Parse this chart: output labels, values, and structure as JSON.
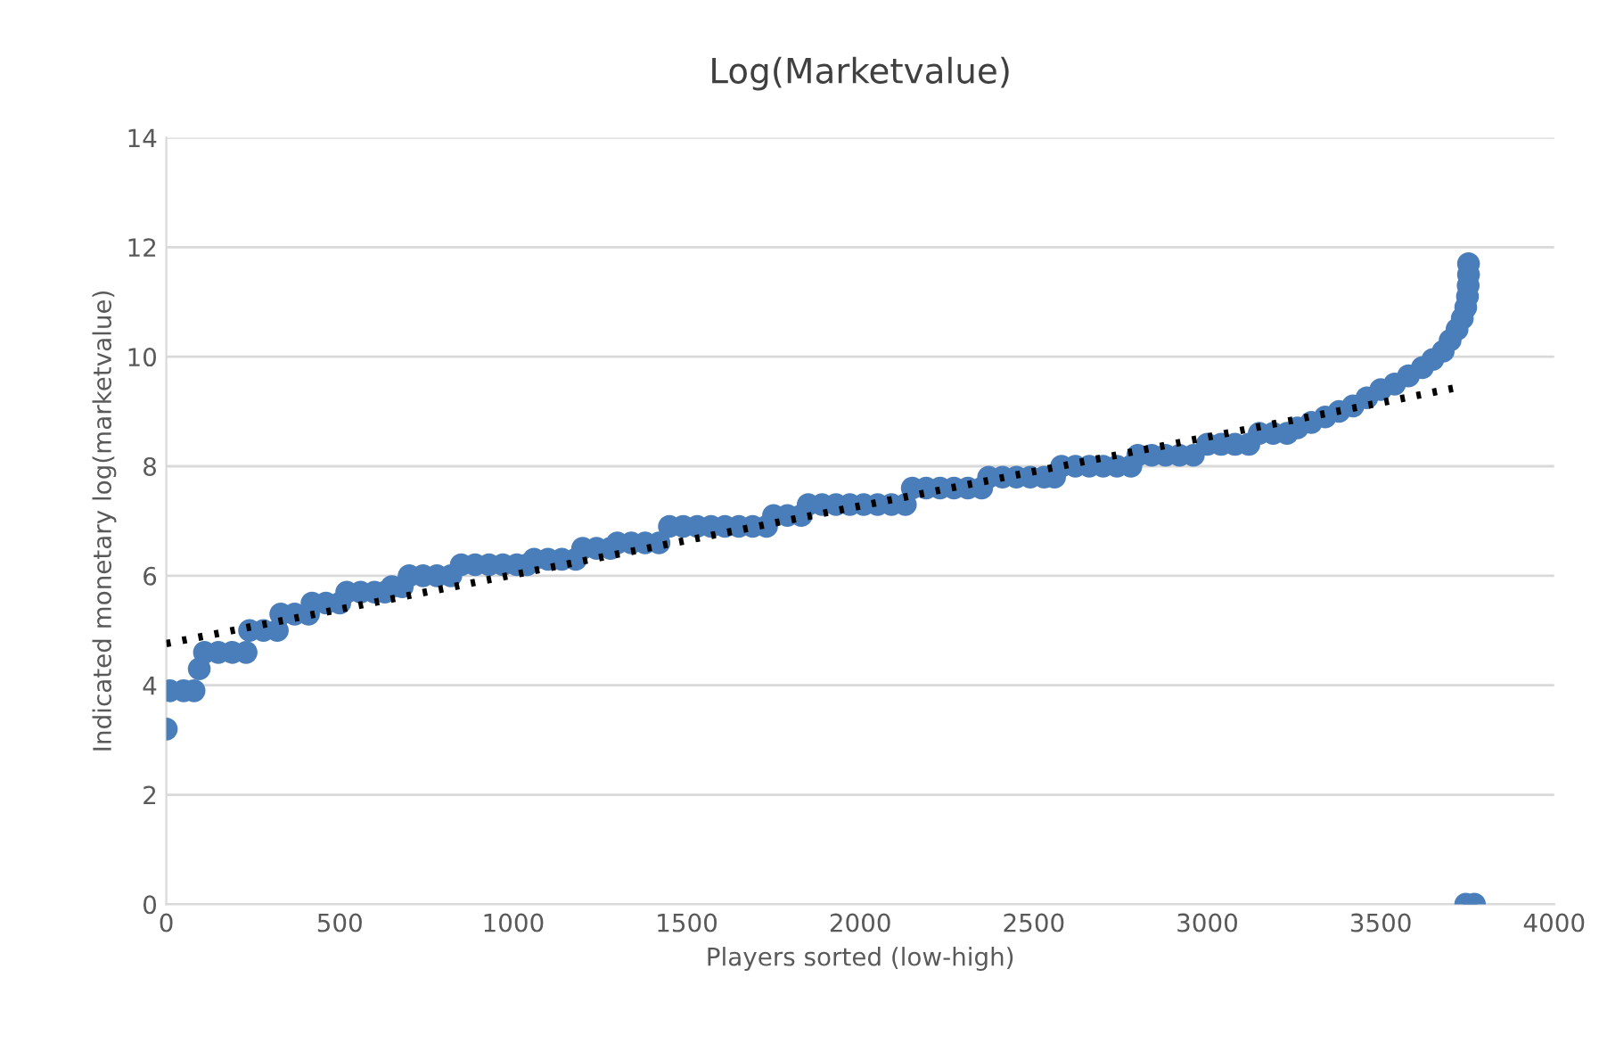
{
  "chart_data": {
    "type": "scatter",
    "title": "Log(Marketvalue)",
    "xlabel": "Players sorted (low-high)",
    "ylabel": "Indicated monetary log(marketvalue)",
    "xlim": [
      0,
      4000
    ],
    "xticks": [
      0,
      500,
      1000,
      1500,
      2000,
      2500,
      3000,
      3500,
      4000
    ],
    "ylim": [
      0,
      14
    ],
    "yticks": [
      0,
      2,
      4,
      6,
      8,
      10,
      12,
      14
    ],
    "grid": "y",
    "marker": "circle",
    "legend": false,
    "series": [
      {
        "color": "#4a7ebb",
        "x": [
          0,
          10,
          50,
          80,
          95,
          110,
          150,
          190,
          230,
          240,
          280,
          320,
          330,
          370,
          410,
          420,
          460,
          500,
          520,
          560,
          600,
          630,
          650,
          680,
          700,
          740,
          780,
          820,
          850,
          890,
          930,
          970,
          1010,
          1040,
          1060,
          1100,
          1140,
          1180,
          1200,
          1240,
          1280,
          1300,
          1340,
          1380,
          1420,
          1450,
          1490,
          1530,
          1570,
          1610,
          1650,
          1690,
          1730,
          1750,
          1790,
          1830,
          1850,
          1890,
          1930,
          1970,
          2010,
          2050,
          2090,
          2130,
          2150,
          2190,
          2230,
          2270,
          2310,
          2350,
          2370,
          2410,
          2450,
          2490,
          2530,
          2560,
          2580,
          2620,
          2660,
          2700,
          2740,
          2780,
          2800,
          2840,
          2880,
          2920,
          2960,
          3000,
          3040,
          3080,
          3120,
          3150,
          3190,
          3230,
          3260,
          3300,
          3340,
          3380,
          3420,
          3460,
          3500,
          3540,
          3580,
          3620,
          3650,
          3680,
          3700,
          3720,
          3735,
          3745,
          3750,
          3752,
          3753,
          3753,
          3745,
          3770
        ],
        "values": [
          3.2,
          3.9,
          3.9,
          3.9,
          4.3,
          4.6,
          4.6,
          4.6,
          4.6,
          5.0,
          5.0,
          5.0,
          5.3,
          5.3,
          5.3,
          5.5,
          5.5,
          5.5,
          5.7,
          5.7,
          5.7,
          5.7,
          5.8,
          5.8,
          6.0,
          6.0,
          6.0,
          6.0,
          6.2,
          6.2,
          6.2,
          6.2,
          6.2,
          6.2,
          6.3,
          6.3,
          6.3,
          6.3,
          6.5,
          6.5,
          6.5,
          6.6,
          6.6,
          6.6,
          6.6,
          6.9,
          6.9,
          6.9,
          6.9,
          6.9,
          6.9,
          6.9,
          6.9,
          7.1,
          7.1,
          7.1,
          7.3,
          7.3,
          7.3,
          7.3,
          7.3,
          7.3,
          7.3,
          7.3,
          7.6,
          7.6,
          7.6,
          7.6,
          7.6,
          7.6,
          7.8,
          7.8,
          7.8,
          7.8,
          7.8,
          7.8,
          8.0,
          8.0,
          8.0,
          8.0,
          8.0,
          8.0,
          8.2,
          8.2,
          8.2,
          8.2,
          8.2,
          8.4,
          8.4,
          8.4,
          8.4,
          8.6,
          8.6,
          8.6,
          8.7,
          8.8,
          8.9,
          9.0,
          9.1,
          9.25,
          9.4,
          9.5,
          9.65,
          9.8,
          9.95,
          10.1,
          10.3,
          10.5,
          10.7,
          10.9,
          11.1,
          11.3,
          11.5,
          11.7,
          0,
          0
        ]
      },
      {
        "type": "line",
        "color": "#000000",
        "line_style": "dotted",
        "marker": "none",
        "x": [
          0,
          3730
        ],
        "values": [
          4.76,
          9.45
        ]
      }
    ]
  }
}
